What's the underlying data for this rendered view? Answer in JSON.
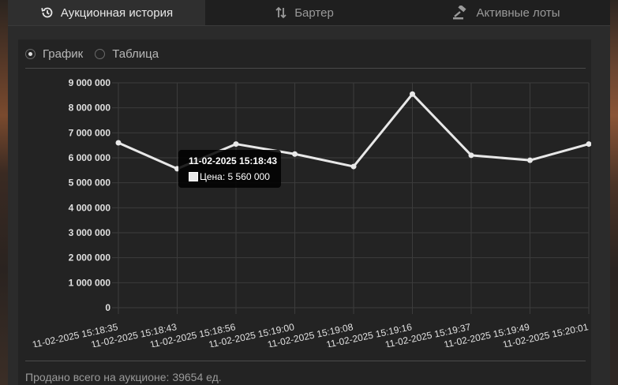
{
  "tabs": [
    {
      "label": "Аукционная история",
      "icon": "history-icon",
      "active": true
    },
    {
      "label": "Бартер",
      "icon": "swap-arrows-icon",
      "active": false
    },
    {
      "label": "Активные лоты",
      "icon": "gavel-icon",
      "active": false
    }
  ],
  "view_toggle": {
    "chart_label": "График",
    "table_label": "Таблица",
    "selected": "График"
  },
  "tooltip": {
    "title": "11-02-2025 15:18:43",
    "label": "Цена: 5 560 000"
  },
  "footer": {
    "text": "Продано всего на аукционе: 39654 ед."
  },
  "colors": {
    "line": "#e8e8e8",
    "grid": "#3c3c3c",
    "panel": "#232323",
    "tick_text": "#e0e0e0"
  },
  "chart_data": {
    "type": "line",
    "title": "",
    "xlabel": "",
    "ylabel": "",
    "categories": [
      "11-02-2025 15:18:35",
      "11-02-2025 15:18:43",
      "11-02-2025 15:18:56",
      "11-02-2025 15:19:00",
      "11-02-2025 15:19:08",
      "11-02-2025 15:19:16",
      "11-02-2025 15:19:37",
      "11-02-2025 15:19:49",
      "11-02-2025 15:20:01"
    ],
    "series": [
      {
        "name": "Цена",
        "values": [
          6600000,
          5560000,
          6550000,
          6150000,
          5650000,
          8550000,
          6100000,
          5900000,
          6550000
        ]
      }
    ],
    "ylim": [
      0,
      9000000
    ],
    "yticks": [
      "0",
      "1 000 000",
      "2 000 000",
      "3 000 000",
      "4 000 000",
      "5 000 000",
      "6 000 000",
      "7 000 000",
      "8 000 000",
      "9 000 000"
    ],
    "grid": true,
    "legend": "none"
  }
}
